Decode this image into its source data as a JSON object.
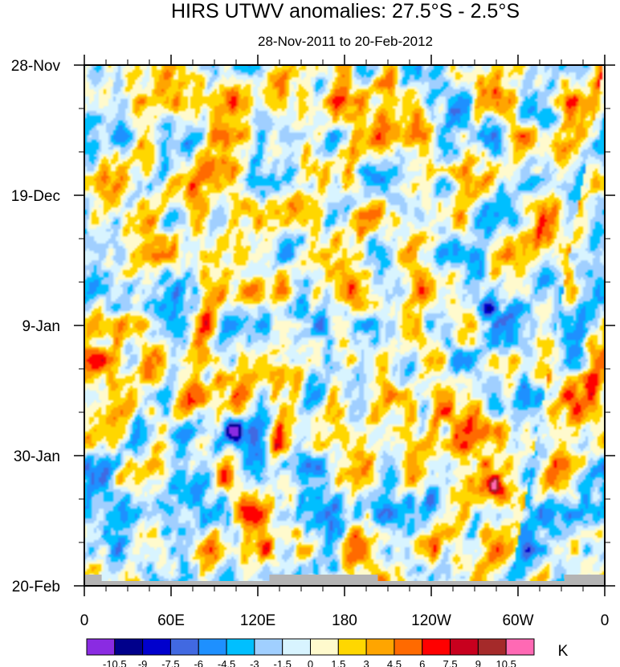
{
  "chart_data": {
    "type": "heatmap",
    "title": "HIRS UTWV anomalies: 27.5°S - 2.5°S",
    "subtitle": "28-Nov-2011 to 20-Feb-2012",
    "xlabel": "",
    "ylabel": "",
    "x_tick_labels": [
      "0",
      "60E",
      "120E",
      "180",
      "120W",
      "60W",
      "0"
    ],
    "x_tick_degrees_east": [
      0,
      60,
      120,
      180,
      240,
      300,
      360
    ],
    "xlim": [
      0,
      360
    ],
    "y_tick_labels": [
      "28-Nov",
      "19-Dec",
      "9-Jan",
      "30-Jan",
      "20-Feb"
    ],
    "y_tick_days": [
      0,
      21,
      42,
      63,
      84
    ],
    "ylim_days": [
      0,
      84
    ],
    "y_direction": "time increases downward",
    "colorbar": {
      "unit_label": "K",
      "levels": [
        "-10.5",
        "-9",
        "-7.5",
        "-6",
        "-4.5",
        "-3",
        "-1.5",
        "0",
        "1.5",
        "3",
        "4.5",
        "6",
        "7.5",
        "9",
        "10.5"
      ],
      "colors": [
        "#8a2be2",
        "#00008b",
        "#0000cd",
        "#4169e1",
        "#1e90ff",
        "#00bfff",
        "#a0cfff",
        "#d8f4ff",
        "#fffacd",
        "#ffd700",
        "#ffa500",
        "#ff6a00",
        "#ff0000",
        "#c8001e",
        "#a52a2a",
        "#ff69b4"
      ]
    },
    "missing_data_color": "#b4b4b4",
    "missing_data_note": "gray strip along bottom row (20-Feb)",
    "anomaly_range": [
      -10.5,
      10.5
    ],
    "notable_features": [
      {
        "description": "strong negative anomaly (< -9 K)",
        "lon_deg_east": 103,
        "date": "~25-Jan"
      },
      {
        "description": "strong negative anomaly",
        "lon_deg_east": 280,
        "date": "~5-Jan"
      },
      {
        "description": "strong positive anomaly (> 9 K)",
        "lon_deg_east": 285,
        "date": "~3-Feb"
      },
      {
        "description": "positive anomaly cluster",
        "lon_deg_east": 125,
        "date": "~13-Feb"
      }
    ]
  }
}
